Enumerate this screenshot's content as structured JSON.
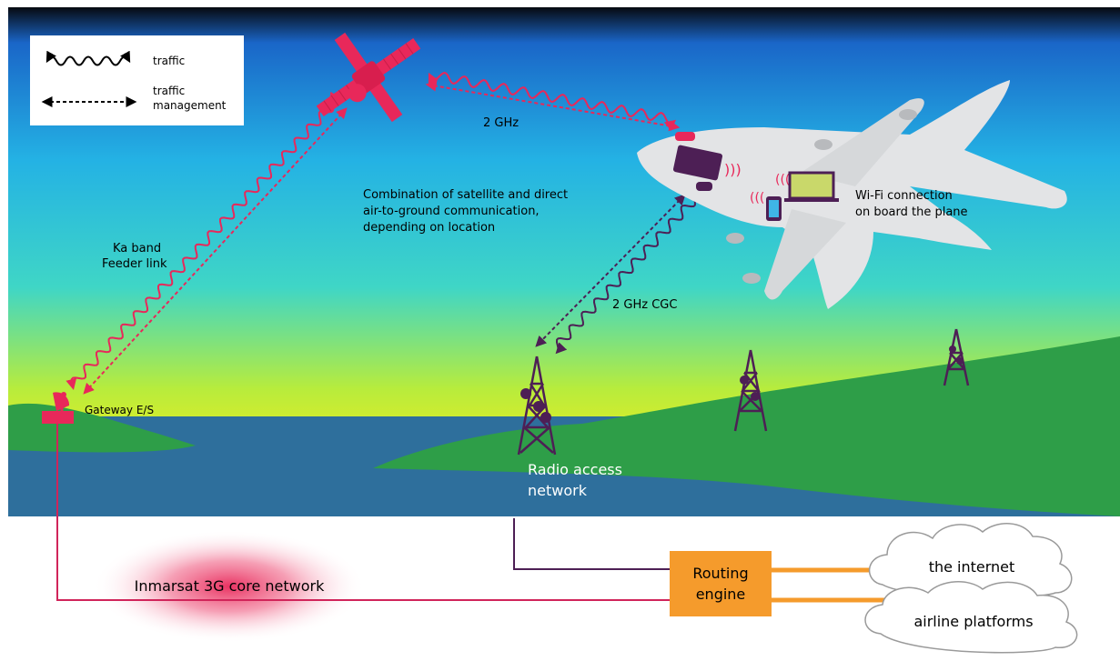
{
  "legend": {
    "traffic": "traffic",
    "management_line1": "traffic",
    "management_line2": "management"
  },
  "labels": {
    "sat_link": "2 GHz",
    "combo_line1": "Combination of satellite and direct",
    "combo_line2": "air-to-ground communication,",
    "combo_line3": "depending on location",
    "wifi_line1": "Wi-Fi connection",
    "wifi_line2": "on board the plane",
    "feeder_line1": "Ka band",
    "feeder_line2": "Feeder link",
    "cgc": "2 GHz CGC",
    "gateway": "Gateway E/S",
    "ran_line1": "Radio access",
    "ran_line2": "network",
    "core": "Inmarsat 3G core network",
    "routing_line1": "Routing",
    "routing_line2": "engine",
    "internet": "the internet",
    "airline": "airline platforms"
  },
  "colors": {
    "satellite": "#e8285a",
    "purple": "#4d1f55",
    "orange": "#f59b2c",
    "island": "#2e9e48",
    "sea": "#2e6f9c",
    "plane": "#e3e4e6"
  }
}
